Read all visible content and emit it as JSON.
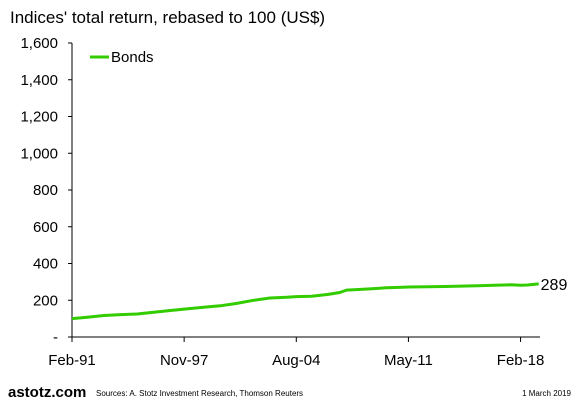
{
  "chart_data": {
    "type": "line",
    "title": "Indices' total return, rebased to 100 (US$)",
    "x_ticks": [
      "Feb-91",
      "Nov-97",
      "Aug-04",
      "May-11",
      "Feb-18"
    ],
    "y_ticks": [
      "-",
      "200",
      "400",
      "600",
      "800",
      "1,000",
      "1,200",
      "1,400",
      "1,600"
    ],
    "ylim": [
      0,
      1600
    ],
    "grid": false,
    "legend": "top-left",
    "series": [
      {
        "name": "Bonds",
        "color": "#33cc00",
        "end_label": "289",
        "x": [
          1991.08,
          1992.0,
          1993.0,
          1994.0,
          1995.0,
          1996.0,
          1997.0,
          1997.83,
          1999.0,
          2000.0,
          2001.0,
          2002.0,
          2003.0,
          2004.0,
          2004.58,
          2005.5,
          2006.5,
          2007.2,
          2007.6,
          2008.2,
          2009.0,
          2010.0,
          2011.0,
          2011.33,
          2012.5,
          2013.5,
          2014.5,
          2015.5,
          2016.5,
          2017.5,
          2018.08,
          2018.5,
          2019.17
        ],
        "values": [
          100,
          108,
          117,
          122,
          125,
          135,
          144,
          152,
          162,
          170,
          183,
          200,
          212,
          216,
          220,
          222,
          232,
          242,
          255,
          258,
          262,
          268,
          271,
          272,
          274,
          275,
          277,
          279,
          282,
          284,
          282,
          283,
          289
        ]
      }
    ]
  },
  "footer": {
    "brand": "astotz.com",
    "sources": "Sources: A. Stotz Investment Research, Thomson Reuters",
    "date": "1 March 2019"
  }
}
